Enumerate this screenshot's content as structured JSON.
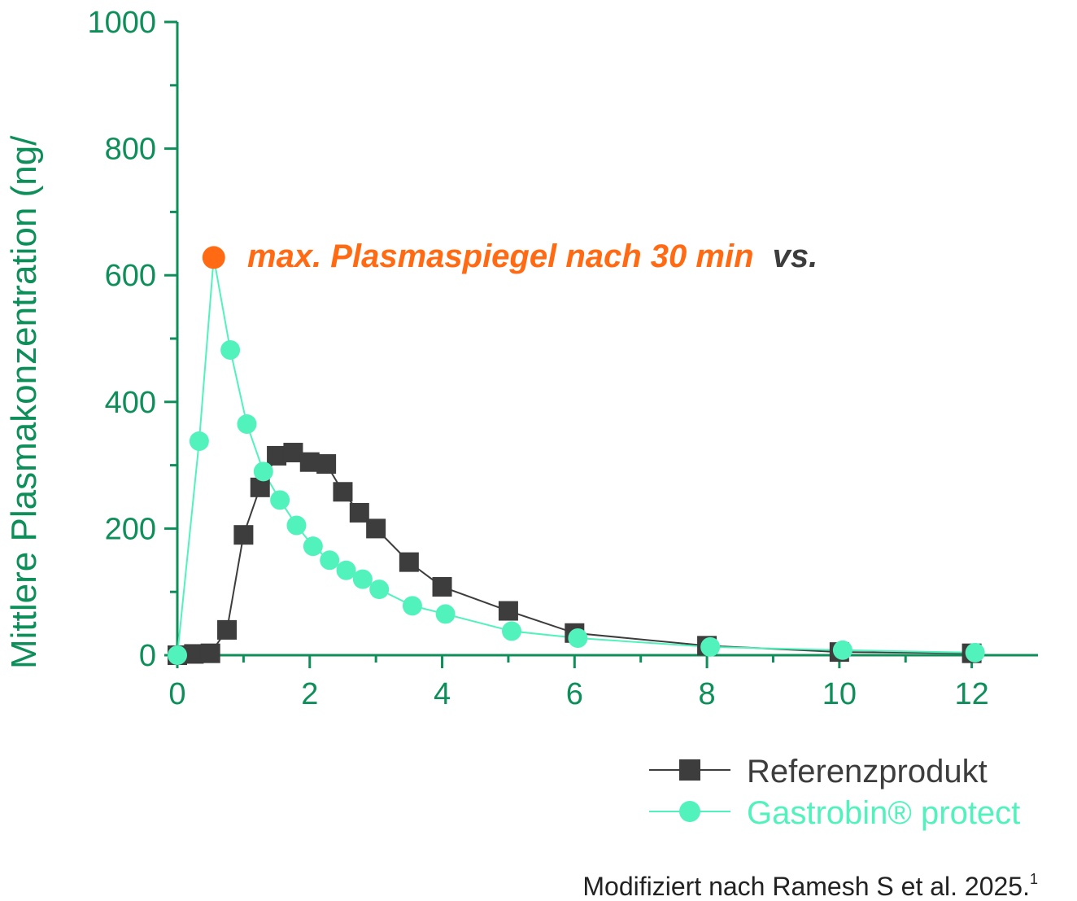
{
  "chart_data": {
    "type": "line",
    "ylabel": "Mittlere Plasmakonzentration (ng/",
    "xlabel": "",
    "xlim": [
      0,
      13
    ],
    "ylim": [
      0,
      1000
    ],
    "xticks": [
      0,
      2,
      4,
      6,
      8,
      10,
      12
    ],
    "yticks": [
      0,
      200,
      400,
      600,
      800,
      1000
    ],
    "series": [
      {
        "name": "Referenzprodukt",
        "marker": "square",
        "color": "#3d3d3d",
        "points": [
          [
            0,
            0
          ],
          [
            0.25,
            2
          ],
          [
            0.5,
            3
          ],
          [
            0.75,
            40
          ],
          [
            1.0,
            190
          ],
          [
            1.25,
            265
          ],
          [
            1.5,
            315
          ],
          [
            1.75,
            320
          ],
          [
            2.0,
            305
          ],
          [
            2.25,
            302
          ],
          [
            2.5,
            258
          ],
          [
            2.75,
            225
          ],
          [
            3.0,
            200
          ],
          [
            3.5,
            147
          ],
          [
            4.0,
            108
          ],
          [
            5.0,
            70
          ],
          [
            6.0,
            35
          ],
          [
            8.0,
            15
          ],
          [
            10.0,
            5
          ],
          [
            12.0,
            3
          ]
        ]
      },
      {
        "name": "Gastrobin® protect",
        "marker": "circle",
        "color": "#52f2bd",
        "points": [
          [
            0,
            0
          ],
          [
            0.33,
            338
          ],
          [
            0.55,
            628
          ],
          [
            0.8,
            482
          ],
          [
            1.05,
            365
          ],
          [
            1.3,
            290
          ],
          [
            1.55,
            245
          ],
          [
            1.8,
            205
          ],
          [
            2.05,
            172
          ],
          [
            2.3,
            150
          ],
          [
            2.55,
            134
          ],
          [
            2.8,
            120
          ],
          [
            3.05,
            104
          ],
          [
            3.55,
            78
          ],
          [
            4.05,
            65
          ],
          [
            5.05,
            38
          ],
          [
            6.05,
            27
          ],
          [
            8.05,
            13
          ],
          [
            10.05,
            8
          ],
          [
            12.05,
            4
          ]
        ]
      }
    ],
    "highlight": {
      "x": 0.55,
      "y": 628,
      "color": "#ff6a13"
    },
    "annotation": {
      "main": "max. Plasmaspiegel nach 30 min",
      "main_color": "#ff6a13",
      "suffix": "vs.",
      "suffix_color": "#3d3d3d"
    },
    "legend": {
      "placement": "bottom-right",
      "items": [
        "Referenzprodukt",
        "Gastrobin® protect"
      ]
    },
    "axis_color": "#0e8f5a",
    "source": "Modifiziert nach Ramesh S et al. 2025.",
    "source_superscript": "1"
  }
}
